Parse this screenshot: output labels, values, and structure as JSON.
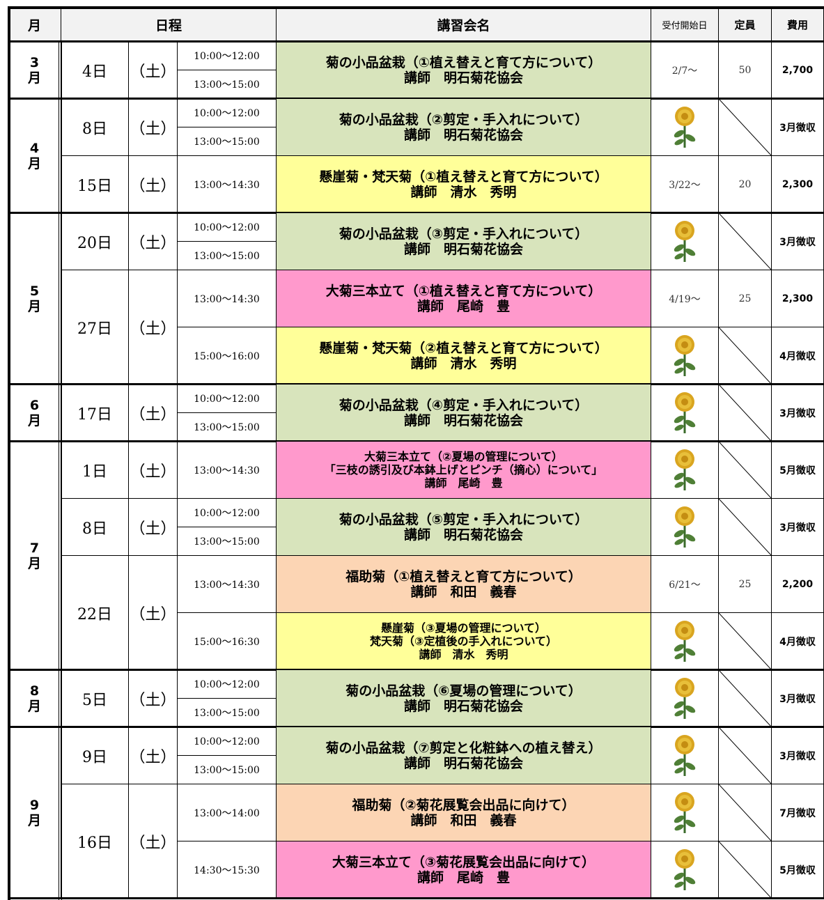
{
  "header": {
    "month": "月",
    "schedule": "日程",
    "course": "講習会名",
    "reception": "受付開始日",
    "capacity": "定員",
    "fee": "費用"
  },
  "months": [
    {
      "label": "3月",
      "days": [
        {
          "day": "4日",
          "weekday": "（土）",
          "entries": [
            {
              "times": [
                "10:00～12:00",
                "13:00～15:00"
              ],
              "course": [
                "菊の小品盆栽（①植え替えと育て方について）",
                "講師　明石菊花協会"
              ],
              "color": "#d8e4bc",
              "reception": "2/7～",
              "capacity": "50",
              "fee": "2,700"
            }
          ]
        }
      ]
    },
    {
      "label": "4月",
      "days": [
        {
          "day": "8日",
          "weekday": "（土）",
          "entries": [
            {
              "times": [
                "10:00～12:00",
                "13:00～15:00"
              ],
              "course": [
                "菊の小品盆栽（②剪定・手入れについて）",
                "講師　明石菊花協会"
              ],
              "color": "#d8e4bc",
              "fee": "3月徴収"
            }
          ]
        },
        {
          "day": "15日",
          "weekday": "（土）",
          "entries": [
            {
              "times": [
                "13:00～14:30"
              ],
              "course": [
                "懸崖菊・梵天菊（①植え替えと育て方について）",
                "講師　清水　秀明"
              ],
              "color": "#ffff99",
              "reception": "3/22～",
              "capacity": "20",
              "fee": "2,300"
            }
          ]
        }
      ]
    },
    {
      "label": "5月",
      "days": [
        {
          "day": "20日",
          "weekday": "（土）",
          "entries": [
            {
              "times": [
                "10:00～12:00",
                "13:00～15:00"
              ],
              "course": [
                "菊の小品盆栽（③剪定・手入れについて）",
                "講師　明石菊花協会"
              ],
              "color": "#d8e4bc",
              "fee": "3月徴収"
            }
          ]
        },
        {
          "day": "27日",
          "weekday": "（土）",
          "entries": [
            {
              "times": [
                "13:00～14:30"
              ],
              "course": [
                "大菊三本立て（①植え替えと育て方について）",
                "講師　尾崎　豊"
              ],
              "color": "#ff99cc",
              "reception": "4/19～",
              "capacity": "25",
              "fee": "2,300"
            },
            {
              "times": [
                "15:00～16:00"
              ],
              "course": [
                "懸崖菊・梵天菊（②植え替えと育て方について）",
                "講師　清水　秀明"
              ],
              "color": "#ffff99",
              "fee": "4月徴収"
            }
          ]
        }
      ]
    },
    {
      "label": "6月",
      "days": [
        {
          "day": "17日",
          "weekday": "（土）",
          "entries": [
            {
              "times": [
                "10:00～12:00",
                "13:00～15:00"
              ],
              "course": [
                "菊の小品盆栽（④剪定・手入れについて）",
                "講師　明石菊花協会"
              ],
              "color": "#d8e4bc",
              "fee": "3月徴収"
            }
          ]
        }
      ]
    },
    {
      "label": "7月",
      "days": [
        {
          "day": "1日",
          "weekday": "（土）",
          "entries": [
            {
              "times": [
                "13:00～14:30"
              ],
              "course": [
                "大菊三本立て（②夏場の管理について）",
                "「三枝の誘引及び本鉢上げとピンチ（摘心）について」",
                "講師　尾崎　豊"
              ],
              "color": "#ff99cc",
              "fee": "5月徴収"
            }
          ]
        },
        {
          "day": "8日",
          "weekday": "（土）",
          "entries": [
            {
              "times": [
                "10:00～12:00",
                "13:00～15:00"
              ],
              "course": [
                "菊の小品盆栽（⑤剪定・手入れについて）",
                "講師　明石菊花協会"
              ],
              "color": "#d8e4bc",
              "fee": "3月徴収"
            }
          ]
        },
        {
          "day": "22日",
          "weekday": "（土）",
          "entries": [
            {
              "times": [
                "13:00～14:30"
              ],
              "course": [
                "福助菊（①植え替えと育て方について）",
                "講師　和田　義春"
              ],
              "color": "#fcd5b4",
              "reception": "6/21～",
              "capacity": "25",
              "fee": "2,200"
            },
            {
              "times": [
                "15:00～16:30"
              ],
              "course": [
                "懸崖菊（③夏場の管理について）",
                "梵天菊（③定植後の手入れについて）",
                "講師　清水　秀明"
              ],
              "color": "#ffff99",
              "fee": "4月徴収"
            }
          ]
        }
      ]
    },
    {
      "label": "8月",
      "days": [
        {
          "day": "5日",
          "weekday": "（土）",
          "entries": [
            {
              "times": [
                "10:00～12:00",
                "13:00～15:00"
              ],
              "course": [
                "菊の小品盆栽（⑥夏場の管理について）",
                "講師　明石菊花協会"
              ],
              "color": "#d8e4bc",
              "fee": "3月徴収"
            }
          ]
        }
      ]
    },
    {
      "label": "9月",
      "days": [
        {
          "day": "9日",
          "weekday": "（土）",
          "entries": [
            {
              "times": [
                "10:00～12:00",
                "13:00～15:00"
              ],
              "course": [
                "菊の小品盆栽（⑦剪定と化粧鉢への植え替え）",
                "講師　明石菊花協会"
              ],
              "color": "#d8e4bc",
              "fee": "3月徴収"
            }
          ]
        },
        {
          "day": "16日",
          "weekday": "（土）",
          "entries": [
            {
              "times": [
                "13:00～14:00"
              ],
              "course": [
                "福助菊（②菊花展覧会出品に向けて）",
                "講師　和田　義春"
              ],
              "color": "#fcd5b4",
              "fee": "7月徴収"
            },
            {
              "times": [
                "14:30～15:30"
              ],
              "course": [
                "大菊三本立て（③菊花展覧会出品に向けて）",
                "講師　尾崎　豊"
              ],
              "color": "#ff99cc",
              "fee": "5月徴収"
            }
          ]
        }
      ]
    }
  ]
}
